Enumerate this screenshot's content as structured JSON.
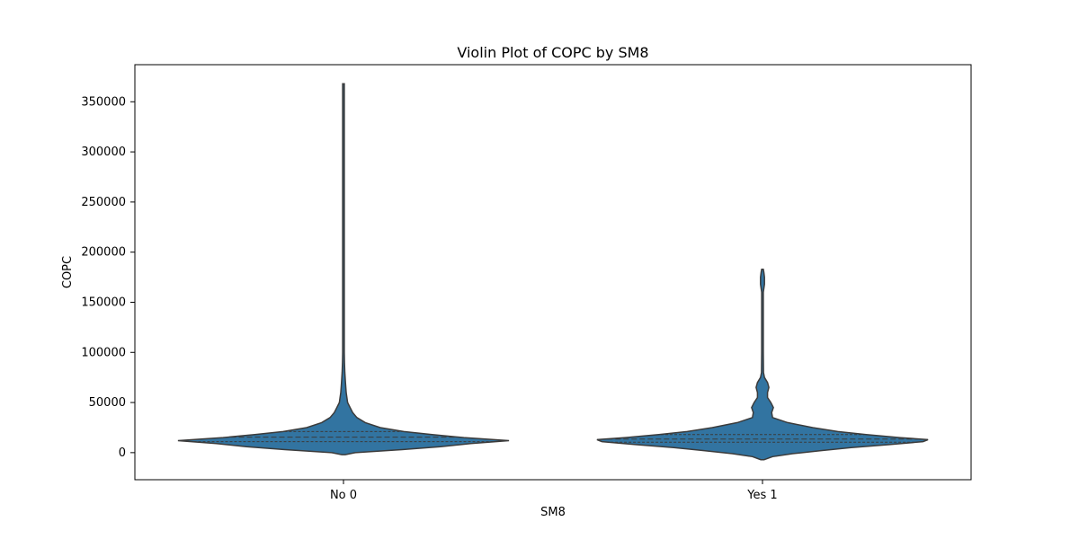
{
  "chart_data": {
    "type": "violin",
    "title": "Violin Plot of COPC by SM8",
    "xlabel": "SM8",
    "ylabel": "COPC",
    "categories": [
      "No 0",
      "Yes 1"
    ],
    "ylim": [
      -27000,
      387000
    ],
    "yticks": [
      0,
      50000,
      100000,
      150000,
      200000,
      250000,
      300000,
      350000
    ],
    "grid": false,
    "legend": "none",
    "color": "#3274a1",
    "series": [
      {
        "category": "No 0",
        "min": -2000,
        "max": 368000,
        "quartiles": {
          "q1": 11000,
          "median": 15500,
          "q3": 21000
        },
        "density_profile": [
          [
            -2000,
            0.01
          ],
          [
            0,
            0.07
          ],
          [
            3000,
            0.35
          ],
          [
            6000,
            0.58
          ],
          [
            9000,
            0.76
          ],
          [
            12000,
            0.99
          ],
          [
            15000,
            0.72
          ],
          [
            18000,
            0.53
          ],
          [
            21000,
            0.36
          ],
          [
            25000,
            0.22
          ],
          [
            30000,
            0.13
          ],
          [
            35000,
            0.08
          ],
          [
            40000,
            0.055
          ],
          [
            45000,
            0.04
          ],
          [
            50000,
            0.025
          ],
          [
            60000,
            0.016
          ],
          [
            70000,
            0.012
          ],
          [
            80000,
            0.008
          ],
          [
            90000,
            0.006
          ],
          [
            100000,
            0.005
          ],
          [
            110000,
            0.004
          ],
          [
            120000,
            0.004
          ],
          [
            130000,
            0.003
          ],
          [
            150000,
            0.003
          ],
          [
            160000,
            0.002
          ],
          [
            200000,
            0.002
          ],
          [
            250000,
            0.002
          ],
          [
            300000,
            0.002
          ],
          [
            350000,
            0.002
          ],
          [
            368000,
            0.001
          ]
        ]
      },
      {
        "category": "Yes 1",
        "min": -7000,
        "max": 183000,
        "quartiles": {
          "q1": 10500,
          "median": 13500,
          "q3": 18000
        },
        "density_profile": [
          [
            -7000,
            0.01
          ],
          [
            -4000,
            0.06
          ],
          [
            -1000,
            0.18
          ],
          [
            2000,
            0.35
          ],
          [
            5000,
            0.53
          ],
          [
            8000,
            0.76
          ],
          [
            11000,
            0.96
          ],
          [
            13000,
            0.99
          ],
          [
            15000,
            0.82
          ],
          [
            18000,
            0.62
          ],
          [
            21000,
            0.45
          ],
          [
            25000,
            0.3
          ],
          [
            30000,
            0.15
          ],
          [
            35000,
            0.06
          ],
          [
            40000,
            0.055
          ],
          [
            45000,
            0.065
          ],
          [
            50000,
            0.05
          ],
          [
            55000,
            0.03
          ],
          [
            60000,
            0.03
          ],
          [
            65000,
            0.038
          ],
          [
            70000,
            0.03
          ],
          [
            75000,
            0.012
          ],
          [
            80000,
            0.006
          ],
          [
            100000,
            0.004
          ],
          [
            120000,
            0.004
          ],
          [
            140000,
            0.004
          ],
          [
            160000,
            0.004
          ],
          [
            168000,
            0.012
          ],
          [
            175000,
            0.012
          ],
          [
            180000,
            0.008
          ],
          [
            183000,
            0.002
          ]
        ]
      }
    ]
  }
}
